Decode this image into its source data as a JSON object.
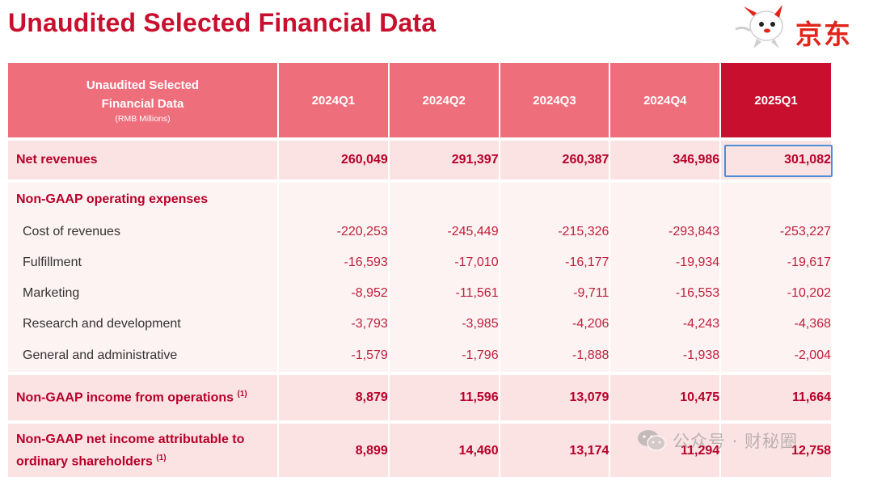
{
  "page": {
    "title": "Unaudited Selected Financial Data",
    "logo_text": "京东",
    "watermark_text": "公众号 · 财秘圈"
  },
  "table": {
    "header": {
      "corner_line1": "Unaudited Selected",
      "corner_line2": "Financial Data",
      "corner_unit": "(RMB Millions)",
      "quarters": [
        "2024Q1",
        "2024Q2",
        "2024Q3",
        "2024Q4",
        "2025Q1"
      ]
    },
    "rows": {
      "net_revenues": {
        "label": "Net revenues",
        "values": [
          "260,049",
          "291,397",
          "260,387",
          "346,986",
          "301,082"
        ]
      },
      "opex_section": {
        "label": "Non-GAAP operating expenses"
      },
      "cost_of_revenues": {
        "label": "Cost of revenues",
        "values": [
          "-220,253",
          "-245,449",
          "-215,326",
          "-293,843",
          "-253,227"
        ]
      },
      "fulfillment": {
        "label": "Fulfillment",
        "values": [
          "-16,593",
          "-17,010",
          "-16,177",
          "-19,934",
          "-19,617"
        ]
      },
      "marketing": {
        "label": "Marketing",
        "values": [
          "-8,952",
          "-11,561",
          "-9,711",
          "-16,553",
          "-10,202"
        ]
      },
      "research_development": {
        "label": "Research and development",
        "values": [
          "-3,793",
          "-3,985",
          "-4,206",
          "-4,243",
          "-4,368"
        ]
      },
      "general_admin": {
        "label": "General and administrative",
        "values": [
          "-1,579",
          "-1,796",
          "-1,888",
          "-1,938",
          "-2,004"
        ]
      },
      "income_from_operations": {
        "label": "Non-GAAP income from operations",
        "footnote": "(1)",
        "values": [
          "8,879",
          "11,596",
          "13,079",
          "10,475",
          "11,664"
        ]
      },
      "net_income": {
        "label_line1": "Non-GAAP net income attributable to",
        "label_line2": "ordinary shareholders",
        "footnote": "(1)",
        "values": [
          "8,899",
          "14,460",
          "13,174",
          "11,294",
          "12,758"
        ]
      }
    }
  },
  "colors": {
    "title_red": "#c8102e",
    "header_pink": "#ee6e7c",
    "header_latest": "#c8102e",
    "row_main_bg": "#fbe3e3",
    "row_sub_bg": "#fdf3f3",
    "highlight_border": "#4a90d9"
  }
}
